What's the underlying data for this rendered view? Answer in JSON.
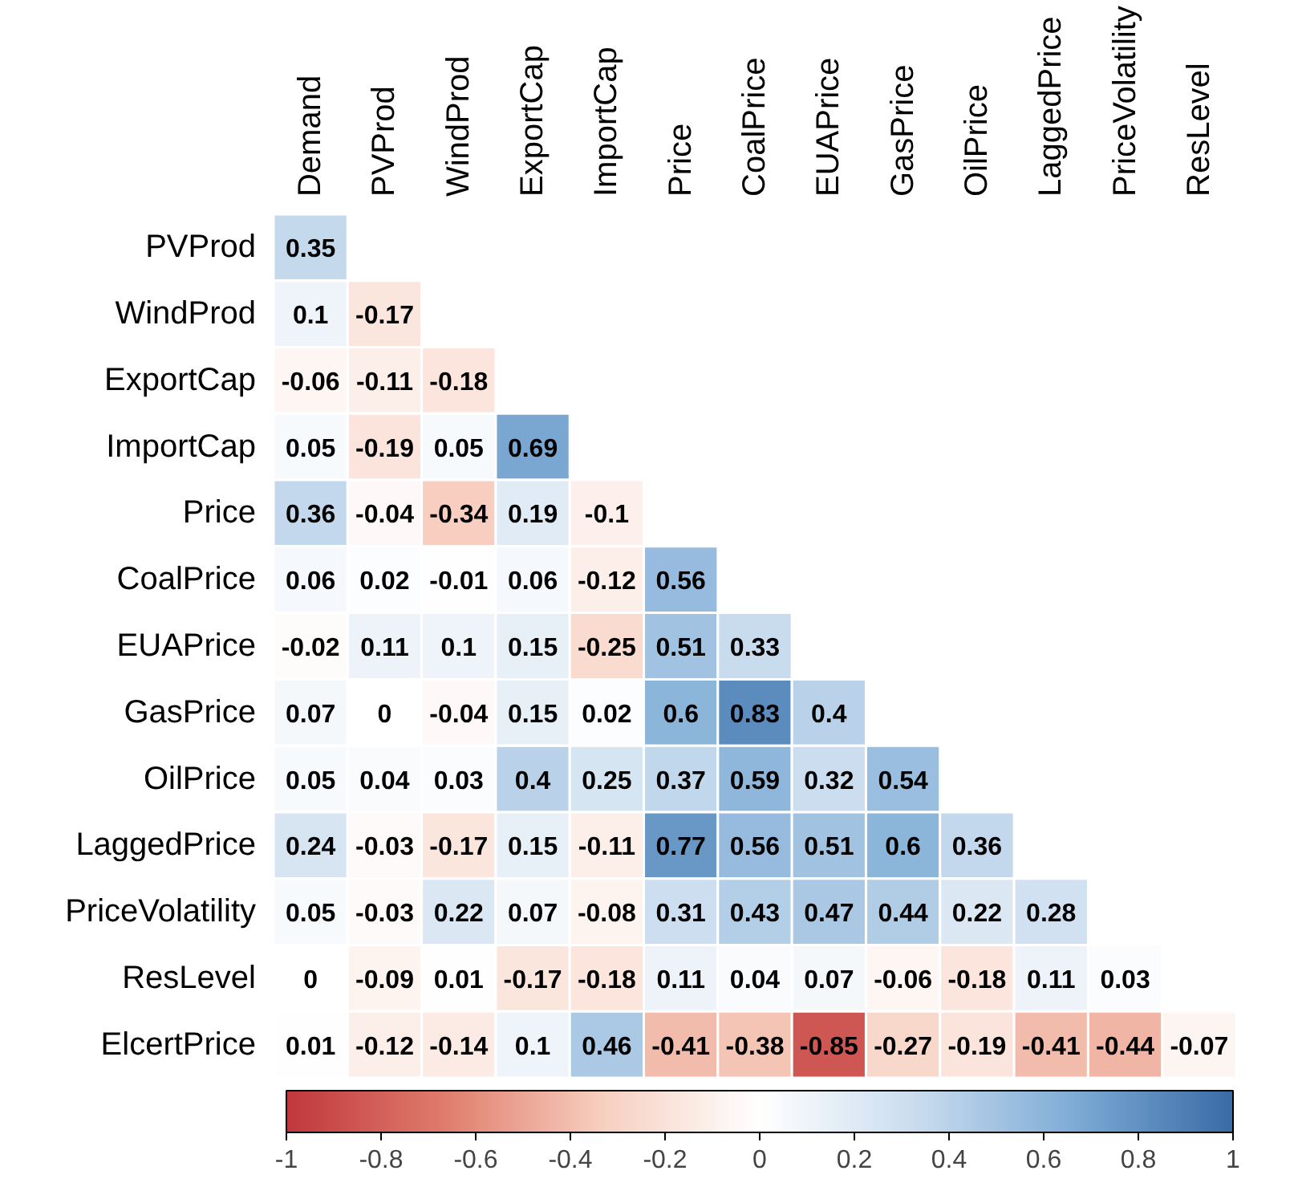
{
  "chart_data": {
    "type": "heatmap",
    "categories": [
      "Demand",
      "PVProd",
      "WindProd",
      "ExportCap",
      "ImportCap",
      "Price",
      "CoalPrice",
      "EUAPrice",
      "GasPrice",
      "OilPrice",
      "LaggedPrice",
      "PriceVolatility",
      "ResLevel"
    ],
    "y_categories": [
      "PVProd",
      "WindProd",
      "ExportCap",
      "ImportCap",
      "Price",
      "CoalPrice",
      "EUAPrice",
      "GasPrice",
      "OilPrice",
      "LaggedPrice",
      "PriceVolatility",
      "ResLevel",
      "ElcertPrice"
    ],
    "cells": [
      [
        0.35,
        null,
        null,
        null,
        null,
        null,
        null,
        null,
        null,
        null,
        null,
        null,
        null
      ],
      [
        0.1,
        -0.17,
        null,
        null,
        null,
        null,
        null,
        null,
        null,
        null,
        null,
        null,
        null
      ],
      [
        -0.06,
        -0.11,
        -0.18,
        null,
        null,
        null,
        null,
        null,
        null,
        null,
        null,
        null,
        null
      ],
      [
        0.05,
        -0.19,
        0.05,
        0.69,
        null,
        null,
        null,
        null,
        null,
        null,
        null,
        null,
        null
      ],
      [
        0.36,
        -0.04,
        -0.34,
        0.19,
        -0.1,
        null,
        null,
        null,
        null,
        null,
        null,
        null,
        null
      ],
      [
        0.06,
        0.02,
        -0.01,
        0.06,
        -0.12,
        0.56,
        null,
        null,
        null,
        null,
        null,
        null,
        null
      ],
      [
        -0.02,
        0.11,
        0.1,
        0.15,
        -0.25,
        0.51,
        0.33,
        null,
        null,
        null,
        null,
        null,
        null
      ],
      [
        0.07,
        0,
        -0.04,
        0.15,
        0.02,
        0.6,
        0.83,
        0.4,
        null,
        null,
        null,
        null,
        null
      ],
      [
        0.05,
        0.04,
        0.03,
        0.4,
        0.25,
        0.37,
        0.59,
        0.32,
        0.54,
        null,
        null,
        null,
        null
      ],
      [
        0.24,
        -0.03,
        -0.17,
        0.15,
        -0.11,
        0.77,
        0.56,
        0.51,
        0.6,
        0.36,
        null,
        null,
        null
      ],
      [
        0.05,
        -0.03,
        0.22,
        0.07,
        -0.08,
        0.31,
        0.43,
        0.47,
        0.44,
        0.22,
        0.28,
        null,
        null
      ],
      [
        0,
        -0.09,
        0.01,
        -0.17,
        -0.18,
        0.11,
        0.04,
        0.07,
        -0.06,
        -0.18,
        0.11,
        0.03,
        null
      ],
      [
        0.01,
        -0.12,
        -0.14,
        0.1,
        0.46,
        -0.41,
        -0.38,
        -0.85,
        -0.27,
        -0.19,
        -0.41,
        -0.44,
        -0.07
      ]
    ],
    "data_labels": true,
    "clim": [
      -1,
      1
    ],
    "cticks": [
      -1,
      -0.8,
      -0.6,
      -0.4,
      -0.2,
      0,
      0.2,
      0.4,
      0.6,
      0.8,
      1
    ]
  }
}
